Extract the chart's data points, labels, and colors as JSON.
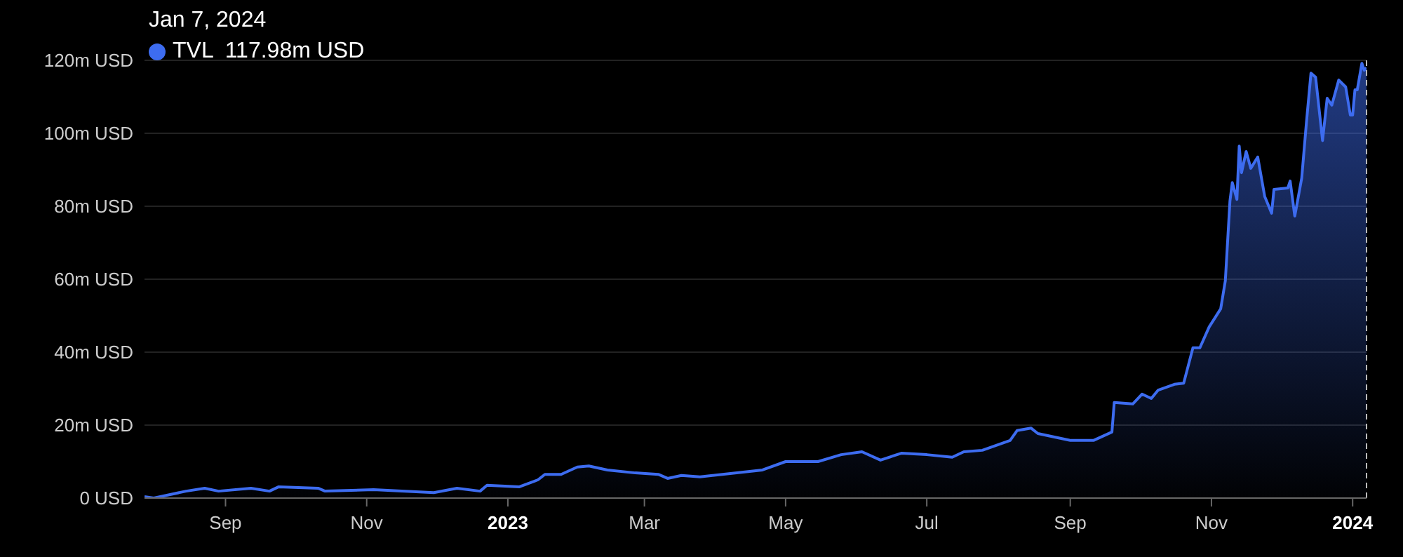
{
  "chart_data": {
    "type": "area",
    "x": [
      "2022-07-28",
      "2022-08-01",
      "2022-08-15",
      "2022-08-23",
      "2022-08-29",
      "2022-09-12",
      "2022-09-20",
      "2022-09-24",
      "2022-10-11",
      "2022-10-14",
      "2022-11-04",
      "2022-11-30",
      "2022-12-10",
      "2022-12-20",
      "2022-12-23",
      "2023-01-06",
      "2023-01-14",
      "2023-01-17",
      "2023-01-24",
      "2023-01-31",
      "2023-02-05",
      "2023-02-13",
      "2023-02-25",
      "2023-03-07",
      "2023-03-11",
      "2023-03-17",
      "2023-03-25",
      "2023-04-21",
      "2023-05-01",
      "2023-05-15",
      "2023-05-25",
      "2023-06-03",
      "2023-06-11",
      "2023-06-20",
      "2023-07-01",
      "2023-07-12",
      "2023-07-17",
      "2023-07-25",
      "2023-08-06",
      "2023-08-09",
      "2023-08-15",
      "2023-08-18",
      "2023-09-01",
      "2023-09-11",
      "2023-09-19",
      "2023-09-20",
      "2023-09-28",
      "2023-10-02",
      "2023-10-06",
      "2023-10-09",
      "2023-10-16",
      "2023-10-20",
      "2023-10-24",
      "2023-10-27",
      "2023-10-31",
      "2023-11-05",
      "2023-11-07",
      "2023-11-09",
      "2023-11-10",
      "2023-11-12",
      "2023-11-13",
      "2023-11-14",
      "2023-11-16",
      "2023-11-18",
      "2023-11-21",
      "2023-11-24",
      "2023-11-27",
      "2023-11-28",
      "2023-12-04",
      "2023-12-05",
      "2023-12-07",
      "2023-12-10",
      "2023-12-12",
      "2023-12-14",
      "2023-12-16",
      "2023-12-19",
      "2023-12-21",
      "2023-12-23",
      "2023-12-26",
      "2023-12-29",
      "2023-12-31",
      "2024-01-01",
      "2024-01-02",
      "2024-01-03",
      "2024-01-05",
      "2024-01-06",
      "2024-01-07"
    ],
    "series": [
      {
        "name": "TVL",
        "color": "#3d6cf0",
        "values": [
          0.4,
          0,
          1.9,
          2.7,
          1.9,
          2.7,
          1.9,
          3.1,
          2.7,
          1.9,
          2.3,
          1.5,
          2.7,
          1.9,
          3.5,
          3.1,
          5,
          6.5,
          6.5,
          8.5,
          8.8,
          7.7,
          6.9,
          6.5,
          5.4,
          6.2,
          5.8,
          7.7,
          10,
          10,
          11.9,
          12.7,
          10.4,
          12.3,
          11.9,
          11.2,
          12.7,
          13.1,
          15.8,
          18.5,
          19.2,
          17.7,
          15.8,
          15.8,
          18.1,
          26.2,
          25.8,
          28.5,
          27.3,
          29.6,
          31.2,
          31.5,
          41.2,
          41.2,
          46.9,
          51.9,
          59.6,
          81.5,
          86.5,
          81.9,
          96.5,
          89.2,
          95,
          90.4,
          93.5,
          82.7,
          78.1,
          84.6,
          85,
          86.9,
          77.3,
          87.7,
          102.7,
          116.5,
          115.4,
          98,
          109.6,
          107.7,
          114.6,
          112.7,
          105,
          105,
          111.9,
          111.9,
          119.2,
          117.3,
          117.98
        ]
      }
    ],
    "xlim": [
      "2022-07-28",
      "2024-01-07"
    ],
    "xticks": [
      {
        "value": "2022-09-01",
        "label": "Sep"
      },
      {
        "value": "2022-11-01",
        "label": "Nov"
      },
      {
        "value": "2023-01-01",
        "label": "2023"
      },
      {
        "value": "2023-03-01",
        "label": "Mar"
      },
      {
        "value": "2023-05-01",
        "label": "May"
      },
      {
        "value": "2023-07-01",
        "label": "Jul"
      },
      {
        "value": "2023-09-01",
        "label": "Sep"
      },
      {
        "value": "2023-11-01",
        "label": "Nov"
      },
      {
        "value": "2024-01-01",
        "label": "2024"
      }
    ],
    "ylim": [
      0,
      120
    ],
    "yticks": [
      {
        "value": 0,
        "label": "0 USD"
      },
      {
        "value": 20,
        "label": "20m USD"
      },
      {
        "value": 40,
        "label": "40m USD"
      },
      {
        "value": 60,
        "label": "60m USD"
      },
      {
        "value": 80,
        "label": "80m USD"
      },
      {
        "value": 100,
        "label": "100m USD"
      },
      {
        "value": 120,
        "label": "120m USD"
      }
    ],
    "grid": "y",
    "legend": "top left",
    "ref_lines": [
      {
        "axis": "x",
        "value": "2024-01-07",
        "color": "#bbbbbb",
        "line_style": "dashed"
      }
    ],
    "annotations": [
      "Jan 7, 2024",
      "117.98m USD"
    ]
  }
}
